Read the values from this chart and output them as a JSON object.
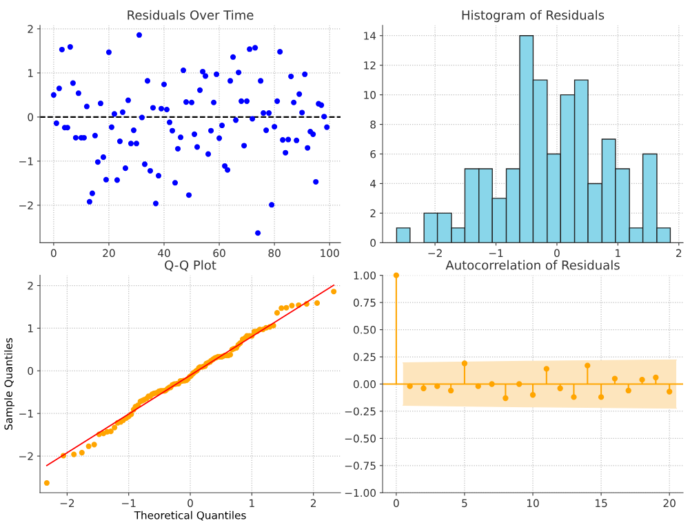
{
  "chart_data": [
    {
      "type": "scatter",
      "title": "Residuals Over Time",
      "marker": "circle",
      "grid": true,
      "x": [
        0,
        1,
        2,
        3,
        4,
        5,
        6,
        7,
        8,
        9,
        10,
        11,
        12,
        13,
        14,
        15,
        16,
        17,
        18,
        19,
        20,
        21,
        22,
        23,
        24,
        25,
        26,
        27,
        28,
        29,
        30,
        31,
        32,
        33,
        34,
        35,
        36,
        37,
        38,
        39,
        40,
        41,
        42,
        43,
        44,
        45,
        46,
        47,
        48,
        49,
        50,
        51,
        52,
        53,
        54,
        55,
        56,
        57,
        58,
        59,
        60,
        61,
        62,
        63,
        64,
        65,
        66,
        67,
        68,
        69,
        70,
        71,
        72,
        73,
        74,
        75,
        76,
        77,
        78,
        79,
        80,
        81,
        82,
        83,
        84,
        85,
        86,
        87,
        88,
        89,
        90,
        91,
        92,
        93,
        94,
        95,
        96,
        97,
        98,
        99
      ],
      "values": [
        0.5,
        -0.14,
        0.65,
        1.53,
        -0.24,
        -0.24,
        1.59,
        0.77,
        -0.47,
        0.54,
        -0.47,
        -0.47,
        0.24,
        -1.92,
        -1.73,
        -0.42,
        -1.02,
        0.31,
        -0.91,
        -1.42,
        1.47,
        -0.23,
        0.07,
        -1.43,
        -0.55,
        0.11,
        -1.16,
        0.38,
        -0.6,
        -0.3,
        -0.6,
        1.86,
        -0.01,
        -1.07,
        0.82,
        -1.22,
        0.21,
        -1.96,
        -1.33,
        0.19,
        0.74,
        0.17,
        -0.12,
        -0.31,
        -1.49,
        -0.72,
        -0.46,
        1.06,
        0.34,
        -1.77,
        0.33,
        -0.39,
        -0.68,
        0.61,
        1.03,
        0.93,
        -0.84,
        -0.31,
        0.33,
        0.97,
        -0.48,
        -0.19,
        -1.11,
        -1.2,
        0.82,
        1.36,
        -0.07,
        1.01,
        0.36,
        -0.65,
        0.36,
        1.54,
        -0.04,
        1.57,
        -2.63,
        0.82,
        0.09,
        -0.3,
        0.09,
        -1.99,
        -0.22,
        0.36,
        1.48,
        -0.52,
        -0.81,
        -0.51,
        0.92,
        0.33,
        -0.53,
        0.52,
        0.1,
        0.97,
        -0.7,
        -0.33,
        -0.39,
        -1.47,
        0.3,
        0.27,
        0.01,
        -0.23
      ],
      "color": "#0000ff",
      "xlim": [
        -4.95,
        103.95
      ],
      "xticks": [
        0,
        20,
        40,
        60,
        80,
        100
      ],
      "ylim": [
        -2.85,
        2.08
      ],
      "yticks": [
        -2,
        -1,
        0,
        1,
        2
      ],
      "ref_lines": [
        {
          "axis": "y",
          "value": 0,
          "color": "#000000",
          "line_style": "dashed"
        }
      ]
    },
    {
      "type": "histogram",
      "title": "Histogram of Residuals",
      "grid": true,
      "color": "#89d6ea",
      "bins": [
        -2.63,
        -2.41,
        -2.18,
        -1.96,
        -1.73,
        -1.51,
        -1.28,
        -1.06,
        -0.83,
        -0.61,
        -0.39,
        -0.16,
        0.06,
        0.29,
        0.51,
        0.74,
        0.96,
        1.19,
        1.41,
        1.64,
        1.86
      ],
      "values": [
        1,
        0,
        2,
        2,
        1,
        5,
        5,
        3,
        5,
        14,
        11,
        6,
        10,
        11,
        4,
        7,
        5,
        1,
        6,
        1
      ],
      "xlim": [
        -2.86,
        2.07
      ],
      "xticks": [
        -2,
        -1,
        0,
        1,
        2
      ],
      "ylim": [
        0,
        14.7
      ],
      "yticks": [
        0,
        2,
        4,
        6,
        8,
        10,
        12,
        14
      ]
    },
    {
      "type": "scatter",
      "title": "Q-Q Plot",
      "xlabel": "Theoretical Quantiles",
      "ylabel": "Sample Quantiles",
      "grid": true,
      "series": [
        {
          "type": "scatter",
          "marker": "circle",
          "color": "#ffa500",
          "x": [
            -2.33,
            -2.06,
            -1.89,
            -1.76,
            -1.65,
            -1.56,
            -1.48,
            -1.41,
            -1.35,
            -1.29,
            -1.23,
            -1.18,
            -1.13,
            -1.09,
            -1.04,
            -1.0,
            -0.96,
            -0.92,
            -0.89,
            -0.85,
            -0.81,
            -0.78,
            -0.75,
            -0.71,
            -0.68,
            -0.65,
            -0.62,
            -0.59,
            -0.56,
            -0.53,
            -0.51,
            -0.48,
            -0.45,
            -0.42,
            -0.4,
            -0.37,
            -0.34,
            -0.32,
            -0.29,
            -0.26,
            -0.24,
            -0.21,
            -0.19,
            -0.16,
            -0.14,
            -0.11,
            -0.09,
            -0.06,
            -0.04,
            -0.01,
            0.01,
            0.04,
            0.06,
            0.09,
            0.11,
            0.14,
            0.16,
            0.19,
            0.21,
            0.24,
            0.26,
            0.29,
            0.32,
            0.34,
            0.37,
            0.4,
            0.42,
            0.45,
            0.48,
            0.51,
            0.53,
            0.56,
            0.59,
            0.62,
            0.65,
            0.68,
            0.71,
            0.75,
            0.78,
            0.81,
            0.85,
            0.89,
            0.92,
            0.96,
            1.0,
            1.04,
            1.09,
            1.13,
            1.18,
            1.23,
            1.29,
            1.35,
            1.41,
            1.48,
            1.56,
            1.65,
            1.76,
            1.89,
            2.06,
            2.33
          ],
          "values": [
            -2.63,
            -1.99,
            -1.96,
            -1.92,
            -1.77,
            -1.73,
            -1.49,
            -1.47,
            -1.43,
            -1.42,
            -1.33,
            -1.22,
            -1.2,
            -1.16,
            -1.11,
            -1.07,
            -1.02,
            -0.91,
            -0.84,
            -0.81,
            -0.72,
            -0.7,
            -0.68,
            -0.65,
            -0.6,
            -0.6,
            -0.55,
            -0.53,
            -0.52,
            -0.51,
            -0.48,
            -0.47,
            -0.47,
            -0.47,
            -0.46,
            -0.42,
            -0.39,
            -0.39,
            -0.33,
            -0.31,
            -0.31,
            -0.3,
            -0.3,
            -0.24,
            -0.24,
            -0.23,
            -0.23,
            -0.22,
            -0.19,
            -0.14,
            -0.12,
            -0.07,
            -0.04,
            -0.01,
            0.01,
            0.07,
            0.09,
            0.09,
            0.1,
            0.11,
            0.17,
            0.19,
            0.21,
            0.24,
            0.27,
            0.3,
            0.31,
            0.33,
            0.33,
            0.33,
            0.34,
            0.36,
            0.36,
            0.36,
            0.38,
            0.5,
            0.52,
            0.54,
            0.61,
            0.65,
            0.74,
            0.77,
            0.82,
            0.82,
            0.82,
            0.92,
            0.93,
            0.97,
            0.97,
            1.01,
            1.03,
            1.06,
            1.36,
            1.47,
            1.48,
            1.53,
            1.54,
            1.57,
            1.59,
            1.86
          ]
        },
        {
          "type": "line",
          "color": "#ff0000",
          "x": [
            -2.33,
            2.33
          ],
          "values": [
            -2.22,
            2.01
          ]
        }
      ],
      "xlim": [
        -2.44,
        2.44
      ],
      "xticks": [
        -2,
        -1,
        0,
        1,
        2
      ],
      "ylim": [
        -2.86,
        2.24
      ],
      "yticks": [
        -2,
        -1,
        0,
        1,
        2
      ]
    },
    {
      "type": "lollipop",
      "title": "Autocorrelation of Residuals",
      "grid": true,
      "series": [
        {
          "type": "area",
          "color": "#fde5bd",
          "x": [
            0.5,
            10,
            20.5
          ],
          "values": [
            0.195,
            0.21,
            0.222
          ]
        },
        {
          "type": "area",
          "color": "#fde5bd",
          "x": [
            0.5,
            10,
            20.5
          ],
          "values": [
            -0.195,
            -0.21,
            -0.222
          ]
        },
        {
          "type": "lollipop",
          "marker": "circle",
          "color": "#ffa500",
          "x": [
            0,
            1,
            2,
            3,
            4,
            5,
            6,
            7,
            8,
            9,
            10,
            11,
            12,
            13,
            14,
            15,
            16,
            17,
            18,
            19,
            20
          ],
          "values": [
            1.0,
            -0.02,
            -0.04,
            -0.02,
            -0.06,
            0.19,
            -0.02,
            0.0,
            -0.13,
            0.0,
            -0.1,
            0.14,
            -0.04,
            -0.12,
            0.17,
            -0.12,
            0.05,
            -0.06,
            0.04,
            0.06,
            -0.07
          ]
        }
      ],
      "ref_lines": [
        {
          "axis": "y",
          "value": 0,
          "color": "#ffa500",
          "line_style": "solid"
        }
      ],
      "xlim": [
        -1,
        21
      ],
      "xticks": [
        0,
        5,
        10,
        15,
        20
      ],
      "ylim": [
        -1,
        1
      ],
      "yticks": [
        {
          "value": -1,
          "label": "−1.00"
        },
        {
          "value": -0.75,
          "label": "−0.75"
        },
        {
          "value": -0.5,
          "label": "−0.50"
        },
        {
          "value": -0.25,
          "label": "−0.25"
        },
        {
          "value": 0,
          "label": "0.00"
        },
        {
          "value": 0.25,
          "label": "0.25"
        },
        {
          "value": 0.5,
          "label": "0.50"
        },
        {
          "value": 0.75,
          "label": "0.75"
        },
        {
          "value": 1,
          "label": "1.00"
        }
      ]
    }
  ]
}
